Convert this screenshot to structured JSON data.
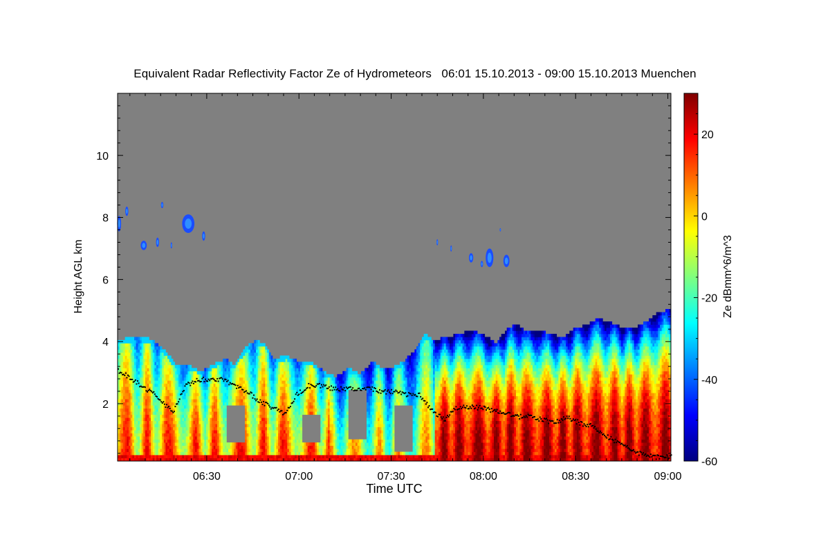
{
  "chart_data": {
    "type": "heatmap",
    "title": "Equivalent Radar Reflectivity Factor Ze of Hydrometeors   06:01 15.10.2013 - 09:00 15.10.2013 Muenchen",
    "xlabel": "Time UTC",
    "ylabel": "Height AGL km",
    "x_range_minutes": [
      361,
      541
    ],
    "x_ticks": [
      {
        "label": "06:30",
        "minutes": 390
      },
      {
        "label": "07:00",
        "minutes": 420
      },
      {
        "label": "07:30",
        "minutes": 450
      },
      {
        "label": "08:00",
        "minutes": 480
      },
      {
        "label": "08:30",
        "minutes": 510
      },
      {
        "label": "09:00",
        "minutes": 540
      }
    ],
    "ylim": [
      0.15,
      12
    ],
    "y_ticks": [
      2,
      4,
      6,
      8,
      10
    ],
    "y_minor_step": 0.4,
    "colorbar": {
      "label": "Ze dBmm^6/m^3",
      "range": [
        -60,
        30
      ],
      "ticks": [
        -60,
        -40,
        -20,
        0,
        20
      ],
      "colors": [
        "#00007f",
        "#0000ff",
        "#007fff",
        "#00ffff",
        "#7fff7f",
        "#ffff00",
        "#ff7f00",
        "#ff0000",
        "#7f0000"
      ]
    },
    "no_signal_color": "#808080",
    "cloud_top_profile_km": [
      [
        361,
        4.0
      ],
      [
        366,
        4.1
      ],
      [
        370,
        4.1
      ],
      [
        374,
        3.9
      ],
      [
        377,
        3.6
      ],
      [
        380,
        3.2
      ],
      [
        384,
        3.2
      ],
      [
        388,
        3.0
      ],
      [
        392,
        3.2
      ],
      [
        396,
        3.4
      ],
      [
        399,
        3.2
      ],
      [
        403,
        3.8
      ],
      [
        406,
        4.0
      ],
      [
        409,
        3.9
      ],
      [
        412,
        3.4
      ],
      [
        416,
        3.5
      ],
      [
        420,
        3.3
      ],
      [
        424,
        3.3
      ],
      [
        428,
        3.0
      ],
      [
        432,
        2.8
      ],
      [
        436,
        3.1
      ],
      [
        440,
        2.9
      ],
      [
        444,
        3.3
      ],
      [
        447,
        3.1
      ],
      [
        450,
        3.1
      ],
      [
        454,
        3.3
      ],
      [
        457,
        3.6
      ],
      [
        461,
        4.2
      ],
      [
        464,
        4.0
      ],
      [
        468,
        4.1
      ],
      [
        472,
        4.2
      ],
      [
        476,
        4.3
      ],
      [
        480,
        4.2
      ],
      [
        484,
        3.9
      ],
      [
        488,
        4.4
      ],
      [
        491,
        4.5
      ],
      [
        494,
        4.3
      ],
      [
        498,
        4.3
      ],
      [
        502,
        4.2
      ],
      [
        506,
        4.1
      ],
      [
        510,
        4.4
      ],
      [
        514,
        4.5
      ],
      [
        517,
        4.7
      ],
      [
        521,
        4.6
      ],
      [
        525,
        4.4
      ],
      [
        529,
        4.4
      ],
      [
        533,
        4.6
      ],
      [
        537,
        4.9
      ],
      [
        541,
        5.0
      ]
    ],
    "ice_patches": [
      {
        "t": 361.5,
        "h": 7.8,
        "w": 1.3,
        "d": 0.5
      },
      {
        "t": 364.0,
        "h": 8.2,
        "w": 1.0,
        "d": 0.3
      },
      {
        "t": 369.5,
        "h": 7.1,
        "w": 2.0,
        "d": 0.3
      },
      {
        "t": 374.0,
        "h": 7.2,
        "w": 1.0,
        "d": 0.3
      },
      {
        "t": 375.5,
        "h": 8.4,
        "w": 0.8,
        "d": 0.2
      },
      {
        "t": 378.5,
        "h": 7.1,
        "w": 0.5,
        "d": 0.2
      },
      {
        "t": 384.0,
        "h": 7.8,
        "w": 4.0,
        "d": 0.6
      },
      {
        "t": 389.0,
        "h": 7.4,
        "w": 1.0,
        "d": 0.3
      },
      {
        "t": 465.0,
        "h": 7.2,
        "w": 0.5,
        "d": 0.2
      },
      {
        "t": 469.5,
        "h": 7.0,
        "w": 0.5,
        "d": 0.2
      },
      {
        "t": 476.0,
        "h": 6.7,
        "w": 1.4,
        "d": 0.3
      },
      {
        "t": 479.5,
        "h": 6.5,
        "w": 0.8,
        "d": 0.2
      },
      {
        "t": 482.0,
        "h": 6.7,
        "w": 2.5,
        "d": 0.6
      },
      {
        "t": 487.5,
        "h": 6.6,
        "w": 2.0,
        "d": 0.4
      },
      {
        "t": 485.5,
        "h": 7.6,
        "w": 0.4,
        "d": 0.1
      }
    ],
    "gaps": [
      {
        "t0": 396,
        "t1": 402,
        "h0": 0.7,
        "h1": 1.9
      },
      {
        "t0": 421,
        "t1": 427,
        "h0": 0.7,
        "h1": 1.6
      },
      {
        "t0": 436,
        "t1": 442,
        "h0": 0.8,
        "h1": 2.4
      },
      {
        "t0": 451,
        "t1": 457,
        "h0": 0.4,
        "h1": 1.9
      }
    ],
    "ceilometer_points_km": [
      [
        361,
        3.1
      ],
      [
        364,
        2.9
      ],
      [
        367,
        2.7
      ],
      [
        370,
        2.5
      ],
      [
        373,
        2.3
      ],
      [
        376,
        2.0
      ],
      [
        379,
        1.8
      ],
      [
        383,
        2.6
      ],
      [
        387,
        2.8
      ],
      [
        391,
        2.8
      ],
      [
        395,
        2.8
      ],
      [
        399,
        2.6
      ],
      [
        403,
        2.4
      ],
      [
        407,
        2.1
      ],
      [
        411,
        1.9
      ],
      [
        415,
        1.7
      ],
      [
        419,
        2.3
      ],
      [
        423,
        2.6
      ],
      [
        427,
        2.6
      ],
      [
        431,
        2.5
      ],
      [
        435,
        2.5
      ],
      [
        439,
        2.5
      ],
      [
        443,
        2.5
      ],
      [
        447,
        2.4
      ],
      [
        451,
        2.4
      ],
      [
        455,
        2.3
      ],
      [
        459,
        2.3
      ],
      [
        463,
        1.8
      ],
      [
        467,
        1.5
      ],
      [
        471,
        1.9
      ],
      [
        475,
        1.9
      ],
      [
        479,
        1.9
      ],
      [
        483,
        1.8
      ],
      [
        487,
        1.7
      ],
      [
        491,
        1.6
      ],
      [
        495,
        1.6
      ],
      [
        499,
        1.5
      ],
      [
        503,
        1.4
      ],
      [
        507,
        1.6
      ],
      [
        511,
        1.4
      ],
      [
        515,
        1.3
      ],
      [
        519,
        1.0
      ],
      [
        523,
        0.8
      ],
      [
        527,
        0.6
      ],
      [
        531,
        0.4
      ],
      [
        535,
        0.3
      ],
      [
        539,
        0.3
      ]
    ]
  }
}
